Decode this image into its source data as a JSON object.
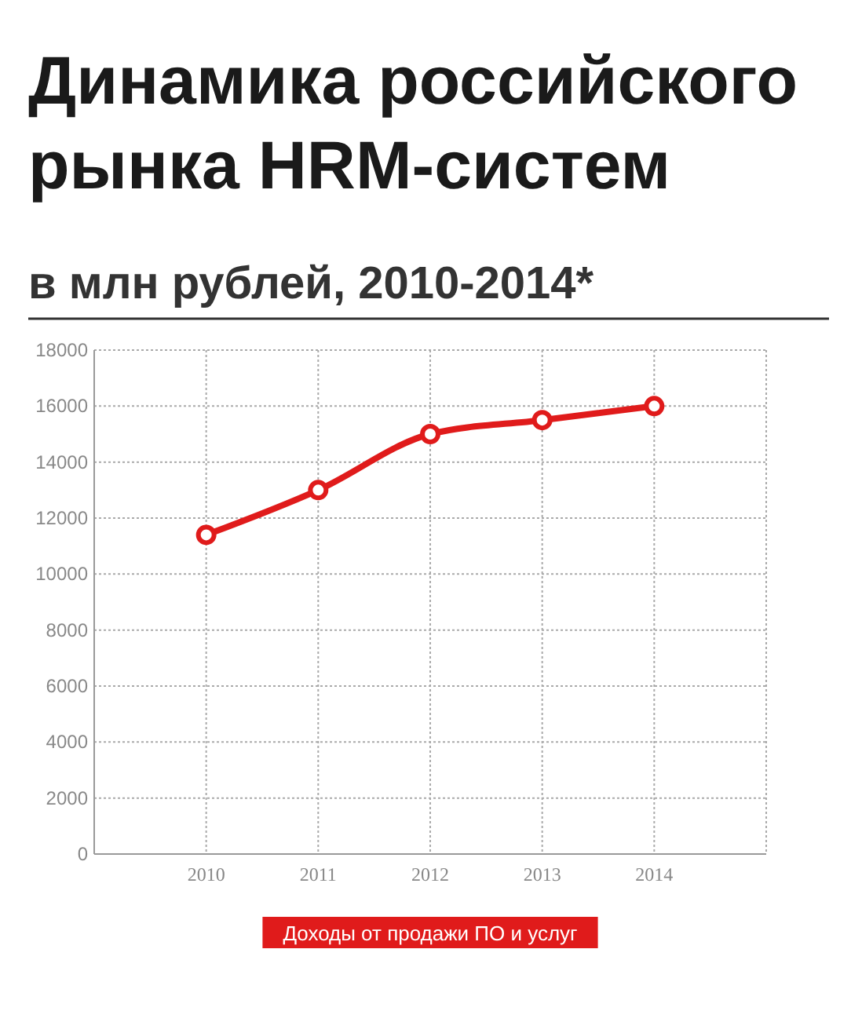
{
  "chart_data": {
    "type": "line",
    "title": "Динамика российского рынка HRM-систем",
    "subtitle": "в млн рублей, 2010-2014*",
    "x": [
      2010,
      2011,
      2012,
      2013,
      2014
    ],
    "series": [
      {
        "name": "Доходы от продажи ПО и услуг",
        "color": "#e01b1b",
        "values": [
          11400,
          13000,
          15000,
          15500,
          16000
        ]
      }
    ],
    "xlim": [
      2009,
      2015
    ],
    "xticks": [
      2010,
      2011,
      2012,
      2013,
      2014
    ],
    "ylim": [
      0,
      18000
    ],
    "yticks": [
      0,
      2000,
      4000,
      6000,
      8000,
      10000,
      12000,
      14000,
      16000,
      18000
    ],
    "grid": true,
    "legend": "bottom",
    "marker": "circle",
    "line_style": "solid"
  }
}
